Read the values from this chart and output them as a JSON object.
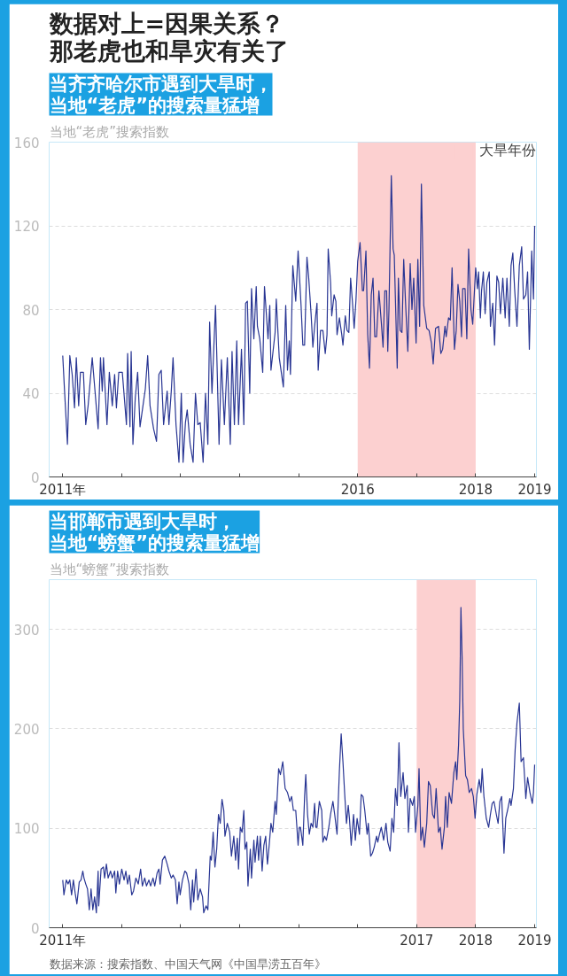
{
  "chart_data": [
    {
      "type": "line",
      "title": "数据对上=因果关系？那老虎也和旱灾有关了",
      "subtitle": "当齐齐哈尔市遇到大旱时，当地“老虎”的搜索量猛增",
      "ylabel": "当地“老虎”搜索指数",
      "x": [
        2011,
        2011.03,
        2011.08,
        2011.12,
        2011.16,
        2011.2,
        2011.23,
        2011.27,
        2011.3,
        2011.35,
        2011.39,
        2011.43,
        2011.5,
        2011.55,
        2011.6,
        2011.64,
        2011.67,
        2011.69,
        2011.75,
        2011.79,
        2011.84,
        2011.88,
        2011.91,
        2011.95,
        2012.01,
        2012.08,
        2012.1,
        2012.14,
        2012.16,
        2012.19,
        2012.23,
        2012.27,
        2012.31,
        2012.36,
        2012.4,
        2012.44,
        2012.48,
        2012.54,
        2012.59,
        2012.63,
        2012.67,
        2012.71,
        2012.77,
        2012.8,
        2012.84,
        2012.87,
        2012.92,
        2012.97,
        2013.01,
        2013.04,
        2013.08,
        2013.11,
        2013.16,
        2013.21,
        2013.25,
        2013.29,
        2013.33,
        2013.38,
        2013.42,
        2013.46,
        2013.49,
        2013.53,
        2013.59,
        2013.65,
        2013.69,
        2013.74,
        2013.79,
        2013.84,
        2013.87,
        2013.91,
        2013.95,
        2013.98,
        2014.03,
        2014.07,
        2014.1,
        2014.13,
        2014.17,
        2014.2,
        2014.24,
        2014.28,
        2014.3,
        2014.34,
        2014.39,
        2014.42,
        2014.48,
        2014.51,
        2014.53,
        2014.6,
        2014.62,
        2014.67,
        2014.74,
        2014.78,
        2014.81,
        2014.84,
        2014.86,
        2014.9,
        2014.95,
        2014.99,
        2015.04,
        2015.07,
        2015.1,
        2015.14,
        2015.17,
        2015.21,
        2015.24,
        2015.27,
        2015.31,
        2015.33,
        2015.37,
        2015.41,
        2015.45,
        2015.48,
        2015.5,
        2015.54,
        2015.56,
        2015.6,
        2015.63,
        2015.65,
        2015.69,
        2015.73,
        2015.75,
        2015.79,
        2015.82,
        2015.85,
        2015.88,
        2015.91,
        2015.94,
        2015.97,
        2016.0,
        2016.04,
        2016.08,
        2016.1,
        2016.14,
        2016.17,
        2016.2,
        2016.23,
        2016.26,
        2016.29,
        2016.32,
        2016.36,
        2016.4,
        2016.43,
        2016.46,
        2016.49,
        2016.51,
        2016.53,
        2016.57,
        2016.6,
        2016.62,
        2016.67,
        2016.69,
        2016.72,
        2016.75,
        2016.78,
        2016.81,
        2016.85,
        2016.89,
        2016.92,
        2016.95,
        2016.99,
        2017.02,
        2017.05,
        2017.08,
        2017.12,
        2017.17,
        2017.21,
        2017.25,
        2017.28,
        2017.32,
        2017.37,
        2017.41,
        2017.44,
        2017.48,
        2017.5,
        2017.54,
        2017.57,
        2017.6,
        2017.64,
        2017.67,
        2017.7,
        2017.73,
        2017.76,
        2017.78,
        2017.82,
        2017.85,
        2017.88,
        2017.92,
        2017.95,
        2017.97,
        2018.0,
        2018.03,
        2018.05,
        2018.08,
        2018.1,
        2018.13,
        2018.16,
        2018.19,
        2018.23,
        2018.25,
        2018.29,
        2018.32,
        2018.36,
        2018.39,
        2018.42,
        2018.46,
        2018.5,
        2018.53,
        2018.57,
        2018.6,
        2018.63,
        2018.66,
        2018.7,
        2018.74,
        2018.78,
        2018.81,
        2018.85,
        2018.88,
        2018.91,
        2018.95,
        2018.98,
        2019.0
      ],
      "series": [
        {
          "color": "#283593",
          "values": [
            58,
            41.5,
            15.6,
            58,
            49,
            33,
            57,
            34,
            50,
            50,
            25,
            34,
            57,
            40,
            23,
            57,
            41,
            57,
            25,
            50,
            34,
            49,
            33,
            50,
            50,
            25,
            59,
            24,
            60,
            15.6,
            38,
            50,
            24,
            34,
            42,
            58,
            34,
            23,
            17,
            49,
            51,
            25,
            41,
            25,
            41,
            57,
            25,
            7,
            40,
            7,
            26,
            32,
            15.6,
            7,
            40,
            25,
            26,
            7,
            40,
            15.6,
            74,
            40,
            82,
            15.6,
            56,
            25,
            57,
            15.6,
            60,
            25,
            65,
            25,
            61,
            25,
            83,
            84,
            40,
            90,
            66,
            91,
            72,
            66,
            50,
            91,
            66,
            82,
            51,
            69,
            85,
            57,
            43,
            82,
            51,
            65,
            49,
            101,
            84,
            108,
            82,
            63,
            63,
            105,
            95,
            78,
            62,
            72,
            83,
            51,
            70,
            70,
            59,
            68,
            109,
            93,
            77,
            87,
            84,
            68,
            76,
            68,
            63,
            77,
            70,
            69,
            95,
            84,
            71,
            84,
            103,
            112,
            89,
            89,
            108,
            68,
            52,
            87,
            95,
            67,
            67,
            89,
            74,
            62,
            89,
            89,
            60,
            80,
            144,
            109,
            106,
            52,
            95,
            70,
            69,
            104,
            84,
            60,
            102,
            80,
            95,
            64,
            104,
            72,
            140,
            82,
            71,
            70,
            64,
            54,
            71,
            72,
            59,
            61,
            72,
            67,
            76,
            75,
            100,
            61,
            70,
            92,
            84,
            67,
            90,
            90,
            66,
            109,
            80,
            73,
            84,
            100,
            90,
            98,
            76,
            89,
            98,
            78,
            93,
            98,
            72,
            83,
            63,
            96,
            93,
            78,
            95,
            76,
            95,
            72,
            101,
            107,
            90,
            72,
            101,
            110,
            85,
            87,
            98,
            61,
            108,
            85,
            120
          ]
        }
      ],
      "xlim": [
        2010.77,
        2019.03
      ],
      "ylim": [
        0,
        160
      ],
      "xticks": [
        {
          "value": 2011,
          "label": "2011年"
        },
        {
          "value": 2012,
          "label": null
        },
        {
          "value": 2013,
          "label": null
        },
        {
          "value": 2014,
          "label": null
        },
        {
          "value": 2015,
          "label": null
        },
        2016,
        {
          "value": 2017,
          "label": null
        },
        2018,
        2019
      ],
      "yticks": [
        0,
        40,
        80,
        120,
        160
      ],
      "bands": [
        {
          "axis": "x",
          "from": 2016,
          "to": 2018,
          "label": "大旱年份",
          "color": "#fcd0d0"
        }
      ],
      "grid": "y",
      "legend": "top right"
    },
    {
      "type": "line",
      "subtitle": "当邯郸市遇到大旱时，当地“螃蟹”的搜索量猛增",
      "ylabel": "当地“螃蟹”搜索指数",
      "x": [
        2011,
        2011.02,
        2011.06,
        2011.09,
        2011.12,
        2011.15,
        2011.18,
        2011.21,
        2011.24,
        2011.28,
        2011.31,
        2011.34,
        2011.36,
        2011.39,
        2011.42,
        2011.45,
        2011.48,
        2011.51,
        2011.54,
        2011.57,
        2011.6,
        2011.61,
        2011.65,
        2011.69,
        2011.71,
        2011.74,
        2011.77,
        2011.81,
        2011.84,
        2011.88,
        2011.9,
        2011.93,
        2011.96,
        2012.0,
        2012.04,
        2012.07,
        2012.1,
        2012.13,
        2012.17,
        2012.2,
        2012.24,
        2012.28,
        2012.32,
        2012.35,
        2012.39,
        2012.42,
        2012.46,
        2012.49,
        2012.53,
        2012.56,
        2012.6,
        2012.63,
        2012.65,
        2012.69,
        2012.73,
        2012.77,
        2012.8,
        2012.84,
        2012.87,
        2012.91,
        2012.94,
        2012.97,
        2012.99,
        2013.03,
        2013.07,
        2013.1,
        2013.14,
        2013.17,
        2013.2,
        2013.22,
        2013.26,
        2013.29,
        2013.33,
        2013.37,
        2013.39,
        2013.43,
        2013.46,
        2013.5,
        2013.52,
        2013.55,
        2013.58,
        2013.61,
        2013.64,
        2013.67,
        2013.7,
        2013.73,
        2013.75,
        2013.79,
        2013.83,
        2013.86,
        2013.9,
        2013.93,
        2013.96,
        2013.98,
        2014.01,
        2014.04,
        2014.07,
        2014.09,
        2014.12,
        2014.14,
        2014.18,
        2014.2,
        2014.24,
        2014.26,
        2014.3,
        2014.32,
        2014.35,
        2014.38,
        2014.41,
        2014.44,
        2014.47,
        2014.5,
        2014.53,
        2014.56,
        2014.6,
        2014.62,
        2014.66,
        2014.69,
        2014.73,
        2014.77,
        2014.81,
        2014.85,
        2014.88,
        2014.91,
        2014.95,
        2014.99,
        2015.01,
        2015.03,
        2015.05,
        2015.07,
        2015.1,
        2015.12,
        2015.15,
        2015.18,
        2015.21,
        2015.24,
        2015.27,
        2015.29,
        2015.31,
        2015.35,
        2015.39,
        2015.41,
        2015.44,
        2015.47,
        2015.51,
        2015.54,
        2015.58,
        2015.61,
        2015.65,
        2015.69,
        2015.72,
        2015.75,
        2015.78,
        2015.81,
        2015.84,
        2015.86,
        2015.89,
        2015.93,
        2015.96,
        2015.99,
        2016.03,
        2016.06,
        2016.09,
        2016.12,
        2016.16,
        2016.18,
        2016.22,
        2016.25,
        2016.28,
        2016.32,
        2016.34,
        2016.37,
        2016.4,
        2016.44,
        2016.48,
        2016.51,
        2016.55,
        2016.58,
        2016.61,
        2016.64,
        2016.67,
        2016.7,
        2016.73,
        2016.77,
        2016.8,
        2016.84,
        2016.86,
        2016.89,
        2016.93,
        2016.96,
        2016.98,
        2017.02,
        2017.04,
        2017.07,
        2017.1,
        2017.13,
        2017.17,
        2017.2,
        2017.23,
        2017.27,
        2017.3,
        2017.33,
        2017.37,
        2017.4,
        2017.43,
        2017.47,
        2017.49,
        2017.52,
        2017.55,
        2017.59,
        2017.63,
        2017.66,
        2017.68,
        2017.71,
        2017.73,
        2017.75,
        2017.77,
        2017.79,
        2017.83,
        2017.86,
        2017.89,
        2017.93,
        2017.96,
        2017.99,
        2018.02,
        2018.06,
        2018.09,
        2018.11,
        2018.14,
        2018.18,
        2018.22,
        2018.25,
        2018.28,
        2018.31,
        2018.35,
        2018.38,
        2018.41,
        2018.44,
        2018.48,
        2018.51,
        2018.54,
        2018.58,
        2018.6,
        2018.64,
        2018.67,
        2018.7,
        2018.74,
        2018.77,
        2018.81,
        2018.85,
        2018.88,
        2018.92,
        2018.96,
        2018.98,
        2019.0
      ],
      "series": [
        {
          "color": "#283593",
          "values": [
            48,
            33,
            48,
            44,
            48,
            33,
            48,
            35,
            24,
            46,
            48,
            57,
            50,
            44,
            39,
            18,
            39,
            18,
            31,
            15,
            57,
            22,
            59,
            61,
            50,
            64,
            50,
            57,
            50,
            57,
            35,
            57,
            44,
            59,
            48,
            57,
            44,
            53,
            33,
            37,
            50,
            44,
            59,
            42,
            50,
            42,
            48,
            42,
            50,
            42,
            55,
            59,
            44,
            68,
            72,
            64,
            57,
            50,
            53,
            48,
            24,
            46,
            33,
            48,
            57,
            55,
            44,
            18,
            48,
            26,
            59,
            28,
            39,
            31,
            15,
            22,
            18,
            72,
            68,
            96,
            61,
            79,
            114,
            105,
            129,
            118,
            92,
            105,
            96,
            72,
            92,
            68,
            90,
            59,
            101,
            96,
            118,
            79,
            86,
            42,
            79,
            50,
            88,
            66,
            92,
            68,
            92,
            57,
            83,
            92,
            64,
            83,
            105,
            96,
            127,
            114,
            160,
            154,
            167,
            140,
            136,
            127,
            132,
            118,
            118,
            83,
            101,
            101,
            92,
            83,
            132,
            154,
            114,
            94,
            105,
            101,
            125,
            101,
            101,
            127,
            118,
            86,
            92,
            88,
            101,
            114,
            127,
            114,
            94,
            158,
            195,
            167,
            134,
            105,
            123,
            110,
            83,
            114,
            88,
            110,
            94,
            134,
            132,
            118,
            94,
            105,
            72,
            75,
            81,
            92,
            86,
            94,
            101,
            88,
            105,
            86,
            77,
            110,
            96,
            140,
            123,
            186,
            132,
            156,
            130,
            143,
            96,
            130,
            123,
            132,
            96,
            123,
            160,
            88,
            101,
            81,
            105,
            147,
            143,
            114,
            110,
            140,
            96,
            101,
            79,
            101,
            132,
            101,
            136,
            125,
            156,
            167,
            149,
            184,
            228,
            322,
            272,
            200,
            153,
            149,
            136,
            140,
            132,
            110,
            134,
            149,
            136,
            160,
            132,
            110,
            101,
            114,
            125,
            127,
            114,
            105,
            127,
            132,
            75,
            110,
            118,
            130,
            123,
            140,
            180,
            206,
            226,
            167,
            171,
            130,
            151,
            136,
            125,
            136,
            164
          ]
        }
      ],
      "xlim": [
        2010.77,
        2019.03
      ],
      "ylim": [
        0,
        350
      ],
      "xticks": [
        {
          "value": 2011,
          "label": "2011年"
        },
        {
          "value": 2012,
          "label": null
        },
        {
          "value": 2013,
          "label": null
        },
        {
          "value": 2014,
          "label": null
        },
        {
          "value": 2015,
          "label": null
        },
        {
          "value": 2016,
          "label": null
        },
        2017,
        2018,
        2019
      ],
      "yticks": [
        0,
        100,
        200,
        300,
        {
          "value": 350,
          "label": null
        }
      ],
      "bands": [
        {
          "axis": "x",
          "from": 2017,
          "to": 2018,
          "color": "#fcd0d0"
        }
      ],
      "grid": "y",
      "annotations": [
        "数据来源：搜索指数、中国天气网《中国旱涝五百年》"
      ]
    }
  ]
}
